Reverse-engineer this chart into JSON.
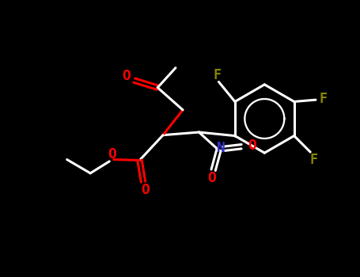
{
  "bg_color": "#000000",
  "bond_color": "#ffffff",
  "oxygen_color": "#ff0000",
  "nitrogen_color": "#3333cc",
  "fluorine_color": "#888800",
  "lw": 2.2,
  "fs": 13,
  "xlim": [
    0,
    10
  ],
  "ylim": [
    0,
    7.7
  ]
}
